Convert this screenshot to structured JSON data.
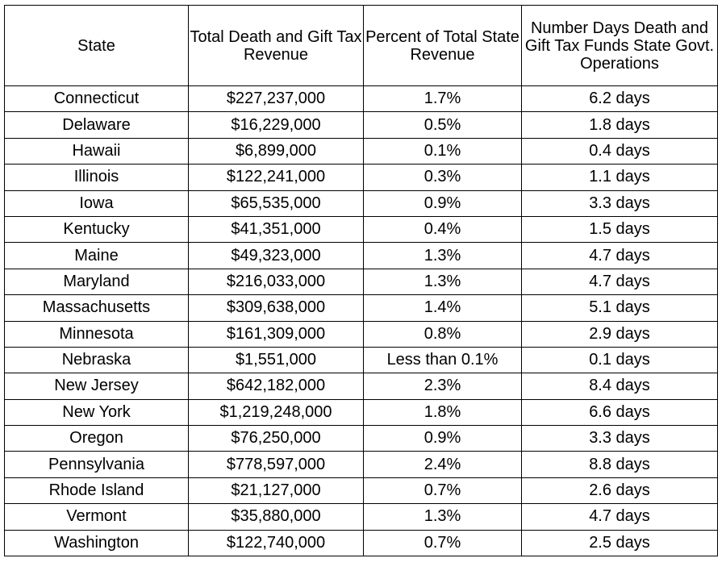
{
  "headers": [
    "State",
    "Total Death and Gift Tax Revenue",
    "Percent of Total State Revenue",
    "Number Days Death and Gift Tax Funds State Govt. Operations"
  ],
  "rows": [
    [
      "Connecticut",
      "$227,237,000",
      "1.7%",
      "6.2 days"
    ],
    [
      "Delaware",
      "$16,229,000",
      "0.5%",
      "1.8 days"
    ],
    [
      "Hawaii",
      "$6,899,000",
      "0.1%",
      "0.4 days"
    ],
    [
      "Illinois",
      "$122,241,000",
      "0.3%",
      "1.1 days"
    ],
    [
      "Iowa",
      "$65,535,000",
      "0.9%",
      "3.3 days"
    ],
    [
      "Kentucky",
      "$41,351,000",
      "0.4%",
      "1.5 days"
    ],
    [
      "Maine",
      "$49,323,000",
      "1.3%",
      "4.7 days"
    ],
    [
      "Maryland",
      "$216,033,000",
      "1.3%",
      "4.7 days"
    ],
    [
      "Massachusetts",
      "$309,638,000",
      "1.4%",
      "5.1 days"
    ],
    [
      "Minnesota",
      "$161,309,000",
      "0.8%",
      "2.9 days"
    ],
    [
      "Nebraska",
      "$1,551,000",
      "Less than 0.1%",
      "0.1 days"
    ],
    [
      "New Jersey",
      "$642,182,000",
      "2.3%",
      "8.4 days"
    ],
    [
      "New York",
      "$1,219,248,000",
      "1.8%",
      "6.6 days"
    ],
    [
      "Oregon",
      "$76,250,000",
      "0.9%",
      "3.3 days"
    ],
    [
      "Pennsylvania",
      "$778,597,000",
      "2.4%",
      "8.8 days"
    ],
    [
      "Rhode Island",
      "$21,127,000",
      "0.7%",
      "2.6 days"
    ],
    [
      "Vermont",
      "$35,880,000",
      "1.3%",
      "4.7 days"
    ],
    [
      "Washington",
      "$122,740,000",
      "0.7%",
      "2.5 days"
    ]
  ]
}
